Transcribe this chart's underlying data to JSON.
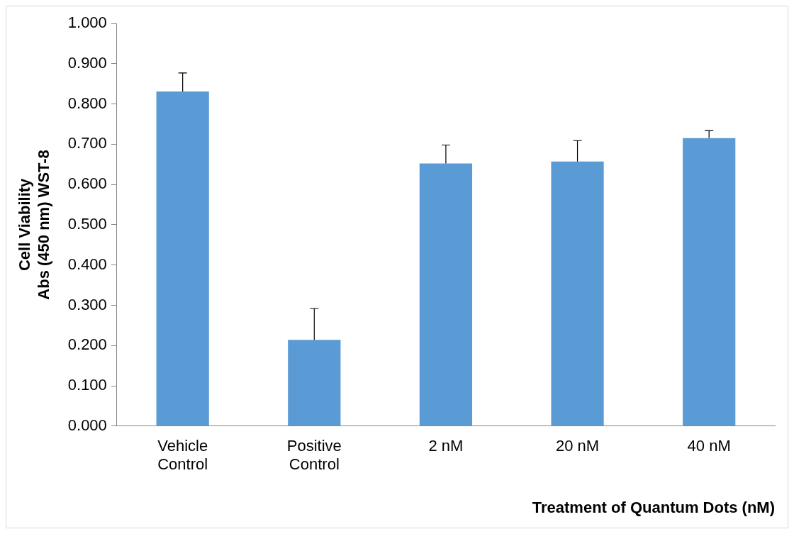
{
  "chart_data": {
    "type": "bar",
    "xlabel": "Treatment of Quantum Dots (nM)",
    "ylabel": "Cell Viability\nAbs (450 nm) WST-8",
    "categories": [
      "Vehicle Control",
      "Positive Control",
      "2 nM",
      "20 nM",
      "40 nM"
    ],
    "values": [
      0.831,
      0.214,
      0.652,
      0.657,
      0.715
    ],
    "errors": [
      [
        0.831,
        0.877
      ],
      [
        0.214,
        0.292
      ],
      [
        0.652,
        0.698
      ],
      [
        0.657,
        0.709
      ],
      [
        0.715,
        0.734
      ]
    ],
    "color": "#5b9bd5",
    "ylim": [
      0,
      1
    ],
    "yticks": [
      {
        "value": 0,
        "label": "0.000"
      },
      {
        "value": 0.1,
        "label": "0.100"
      },
      {
        "value": 0.2,
        "label": "0.200"
      },
      {
        "value": 0.3,
        "label": "0.300"
      },
      {
        "value": 0.4,
        "label": "0.400"
      },
      {
        "value": 0.5,
        "label": "0.500"
      },
      {
        "value": 0.6,
        "label": "0.600"
      },
      {
        "value": 0.7,
        "label": "0.700"
      },
      {
        "value": 0.8,
        "label": "0.800"
      },
      {
        "value": 0.9,
        "label": "0.900"
      },
      {
        "value": 1,
        "label": "1.000"
      }
    ],
    "grid": false,
    "legend": false
  }
}
